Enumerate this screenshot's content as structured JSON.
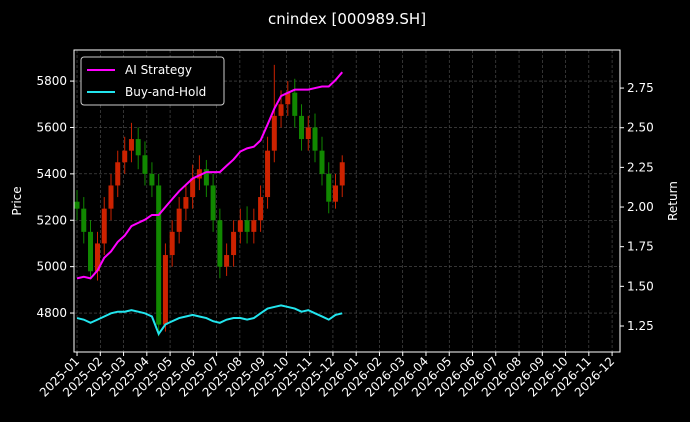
{
  "chart_data": {
    "type": "candlestick",
    "title": "cnindex [000989.SH]",
    "ylabel": "Price",
    "y2label": "Return",
    "x": [
      0,
      0.29,
      0.58,
      0.88,
      1.17,
      1.46,
      1.75,
      2.05,
      2.34,
      2.63,
      2.92,
      3.22,
      3.51,
      3.8,
      4.09,
      4.39,
      4.68,
      4.97,
      5.26,
      5.56,
      5.85,
      6.14,
      6.43,
      6.73,
      7.02,
      7.31,
      7.6,
      7.89,
      8.19,
      8.48,
      8.77,
      9.06,
      9.36,
      9.65,
      9.94,
      10.23,
      10.53,
      10.82,
      11.11,
      11.4
    ],
    "open": [
      5280,
      5250,
      5150,
      4980,
      5100,
      5250,
      5350,
      5450,
      5500,
      5550,
      5480,
      5400,
      5350,
      4750,
      5050,
      5150,
      5250,
      5300,
      5380,
      5420,
      5350,
      5200,
      5000,
      5050,
      5150,
      5200,
      5150,
      5200,
      5300,
      5500,
      5650,
      5700,
      5750,
      5650,
      5550,
      5600,
      5500,
      5400,
      5280,
      5350
    ],
    "high": [
      5330,
      5300,
      5200,
      5150,
      5300,
      5400,
      5500,
      5560,
      5620,
      5600,
      5540,
      5450,
      5400,
      5100,
      5200,
      5300,
      5350,
      5440,
      5480,
      5460,
      5400,
      5250,
      5100,
      5200,
      5250,
      5260,
      5250,
      5350,
      5560,
      5870,
      5760,
      5800,
      5810,
      5700,
      5650,
      5660,
      5560,
      5450,
      5400,
      5480
    ],
    "low": [
      5200,
      5100,
      4950,
      4940,
      5050,
      5200,
      5300,
      5400,
      5450,
      5420,
      5350,
      5300,
      4700,
      4720,
      5000,
      5100,
      5200,
      5250,
      5330,
      5300,
      5150,
      4950,
      4960,
      5000,
      5100,
      5100,
      5100,
      5150,
      5250,
      5450,
      5600,
      5650,
      5600,
      5500,
      5500,
      5450,
      5350,
      5230,
      5250,
      5300
    ],
    "close": [
      5250,
      5150,
      4980,
      5100,
      5250,
      5350,
      5450,
      5500,
      5550,
      5480,
      5400,
      5350,
      4750,
      5050,
      5150,
      5250,
      5300,
      5380,
      5420,
      5350,
      5200,
      5000,
      5050,
      5150,
      5200,
      5150,
      5200,
      5300,
      5500,
      5650,
      5700,
      5750,
      5650,
      5550,
      5600,
      5500,
      5400,
      5280,
      5350,
      5450
    ],
    "up_color": "#cc2200",
    "down_color": "#118800",
    "series": [
      {
        "name": "AI Strategy",
        "color": "#ff00ff",
        "axis": "y2",
        "values": [
          1.55,
          1.56,
          1.55,
          1.6,
          1.68,
          1.72,
          1.78,
          1.82,
          1.88,
          1.9,
          1.92,
          1.95,
          1.95,
          2.0,
          2.05,
          2.1,
          2.14,
          2.18,
          2.2,
          2.22,
          2.22,
          2.22,
          2.26,
          2.3,
          2.35,
          2.37,
          2.38,
          2.42,
          2.52,
          2.62,
          2.7,
          2.72,
          2.74,
          2.74,
          2.74,
          2.75,
          2.76,
          2.76,
          2.8,
          2.85
        ]
      },
      {
        "name": "Buy-and-Hold",
        "color": "#22e5ee",
        "axis": "y2",
        "values": [
          1.3,
          1.29,
          1.27,
          1.29,
          1.31,
          1.33,
          1.34,
          1.34,
          1.35,
          1.34,
          1.33,
          1.31,
          1.2,
          1.26,
          1.28,
          1.3,
          1.31,
          1.32,
          1.31,
          1.3,
          1.28,
          1.27,
          1.29,
          1.3,
          1.3,
          1.29,
          1.3,
          1.33,
          1.36,
          1.37,
          1.38,
          1.37,
          1.36,
          1.34,
          1.35,
          1.33,
          1.31,
          1.29,
          1.32,
          1.33
        ]
      }
    ],
    "xlim": [
      -0.13,
      23.34
    ],
    "xticks": [
      {
        "value": 0,
        "label": "2025-01"
      },
      {
        "value": 1,
        "label": "2025-02"
      },
      {
        "value": 2,
        "label": "2025-03"
      },
      {
        "value": 3,
        "label": "2025-04"
      },
      {
        "value": 4,
        "label": "2025-05"
      },
      {
        "value": 5,
        "label": "2025-06"
      },
      {
        "value": 6,
        "label": "2025-07"
      },
      {
        "value": 7,
        "label": "2025-08"
      },
      {
        "value": 8,
        "label": "2025-09"
      },
      {
        "value": 9,
        "label": "2025-10"
      },
      {
        "value": 10,
        "label": "2025-11"
      },
      {
        "value": 11,
        "label": "2025-12"
      },
      {
        "value": 12,
        "label": "2026-01"
      },
      {
        "value": 13,
        "label": "2026-02"
      },
      {
        "value": 14,
        "label": "2026-03"
      },
      {
        "value": 15,
        "label": "2026-04"
      },
      {
        "value": 16,
        "label": "2026-05"
      },
      {
        "value": 17,
        "label": "2026-06"
      },
      {
        "value": 18,
        "label": "2026-07"
      },
      {
        "value": 19,
        "label": "2026-08"
      },
      {
        "value": 20,
        "label": "2026-09"
      },
      {
        "value": 21,
        "label": "2026-10"
      },
      {
        "value": 22,
        "label": "2026-11"
      },
      {
        "value": 23,
        "label": "2026-12"
      }
    ],
    "ylim": [
      4632,
      5934
    ],
    "yticks": [
      4800,
      5000,
      5200,
      5400,
      5600,
      5800
    ],
    "y2lim": [
      1.086,
      2.99
    ],
    "y2ticks": [
      1.25,
      {
        "value": 1.5,
        "label": "1.50"
      },
      1.75,
      {
        "value": 2.0,
        "label": "2.00"
      },
      2.25,
      {
        "value": 2.5,
        "label": "2.50"
      },
      2.75
    ],
    "grid": true,
    "legend": "upper left"
  }
}
